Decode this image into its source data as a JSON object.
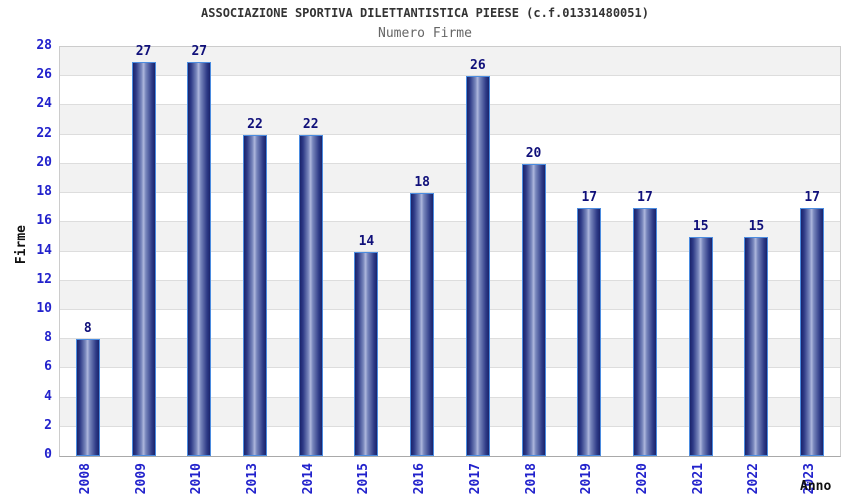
{
  "chart_data": {
    "type": "bar",
    "title": "ASSOCIAZIONE SPORTIVA DILETTANTISTICA PIEESE (c.f.01331480051)",
    "subtitle": "Numero Firme",
    "xlabel": "Anno",
    "ylabel": "Firme",
    "categories": [
      "2008",
      "2009",
      "2010",
      "2013",
      "2014",
      "2015",
      "2016",
      "2017",
      "2018",
      "2019",
      "2020",
      "2021",
      "2022",
      "2023"
    ],
    "values": [
      8,
      27,
      27,
      22,
      22,
      14,
      18,
      26,
      20,
      17,
      17,
      15,
      15,
      17
    ],
    "ylim": [
      0,
      28
    ],
    "ytick_step": 2,
    "grid": true,
    "legend_position": "none",
    "colors": {
      "tick_label": "#2222cc",
      "value_label": "#10107a",
      "bar_border": "#4b8ce0",
      "bar_dark": "#1a236b",
      "bar_light": "#aeb7dd",
      "band_fill": "#f2f2f2",
      "gridline": "#dddddd",
      "plot_border": "#cccccc",
      "title_color": "#333333",
      "subtitle_color": "#666666"
    }
  }
}
